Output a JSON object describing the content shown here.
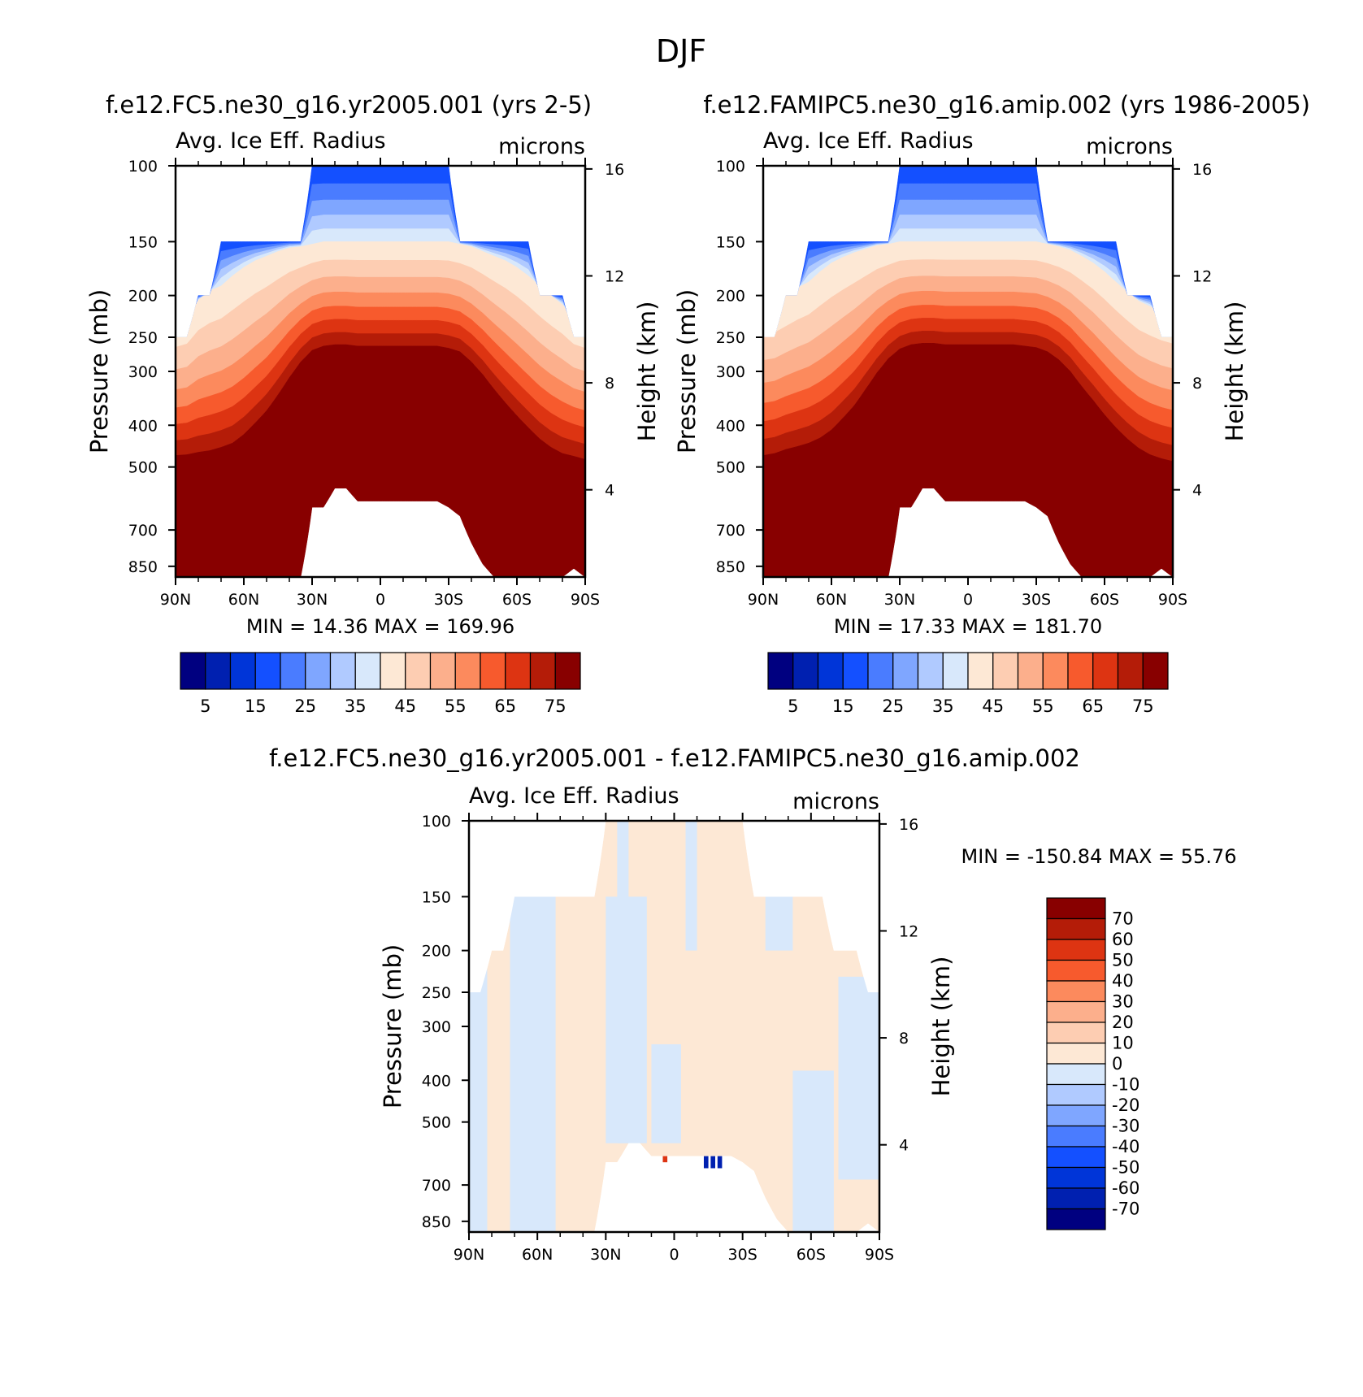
{
  "figure": {
    "title": "DJF"
  },
  "axes_common": {
    "pressure_ticks": [
      100,
      150,
      200,
      250,
      300,
      400,
      500,
      700,
      850
    ],
    "height_ticks": [
      16,
      12,
      8,
      4
    ],
    "lat_ticks": [
      "90N",
      "60N",
      "30N",
      "0",
      "30S",
      "60S",
      "90S"
    ],
    "ylabel": "Pressure (mb)",
    "y2label": "Height (km)",
    "variable": "Avg. Ice Eff. Radius",
    "units": "microns"
  },
  "palettes": {
    "abs": [
      "#000080",
      "#0020b0",
      "#0035d8",
      "#1450ff",
      "#4a7cff",
      "#7fa6ff",
      "#b0caff",
      "#d8e8fb",
      "#fde8d5",
      "#fdcdb2",
      "#fcaf8c",
      "#fc8a5d",
      "#f75a2d",
      "#dd3412",
      "#b41c08",
      "#880000"
    ],
    "diff": [
      "#000080",
      "#0020b0",
      "#0035d8",
      "#1450ff",
      "#4a7cff",
      "#7fa6ff",
      "#b0caff",
      "#d8e8fb",
      "#fde8d5",
      "#fdcdb2",
      "#fcaf8c",
      "#fc8a5d",
      "#f75a2d",
      "#dd3412",
      "#b41c08",
      "#880000"
    ]
  },
  "panels": [
    {
      "id": "top-left",
      "title": "f.e12.FC5.ne30_g16.yr2005.001 (yrs 2-5)",
      "stats": "MIN =   14.36   MAX =  169.96",
      "colorbar_labels": [
        "5",
        "15",
        "25",
        "35",
        "45",
        "55",
        "65",
        "75"
      ]
    },
    {
      "id": "top-right",
      "title": "f.e12.FAMIPC5.ne30_g16.amip.002 (yrs 1986-2005)",
      "stats": "MIN =   17.33   MAX =  181.70",
      "colorbar_labels": [
        "5",
        "15",
        "25",
        "35",
        "45",
        "55",
        "65",
        "75"
      ]
    },
    {
      "id": "bottom-diff",
      "title": "f.e12.FC5.ne30_g16.yr2005.001 - f.e12.FAMIPC5.ne30_g16.amip.002",
      "stats": "MIN = -150.84   MAX =   55.76",
      "colorbar_labels": [
        "70",
        "60",
        "50",
        "40",
        "30",
        "20",
        "10",
        "0",
        "-10",
        "-20",
        "-30",
        "-40",
        "-50",
        "-60",
        "-70"
      ]
    }
  ],
  "chart_data": [
    {
      "type": "heatmap",
      "title": "f.e12.FC5.ne30_g16.yr2005.001 (yrs 2-5)",
      "subtitle": "Avg. Ice Eff. Radius",
      "units": "microns",
      "xlabel": "",
      "ylabel": "Pressure (mb)",
      "y2label": "Height (km)",
      "x_range": [
        90,
        -90
      ],
      "y_range": [
        100,
        900
      ],
      "min": 14.36,
      "max": 169.96,
      "levels": [
        5,
        10,
        15,
        20,
        25,
        30,
        35,
        40,
        45,
        50,
        55,
        60,
        65,
        70,
        75
      ],
      "zonal_profiles": {
        "lat": [
          90,
          85,
          80,
          75,
          70,
          65,
          60,
          55,
          50,
          45,
          40,
          35,
          30,
          25,
          20,
          15,
          10,
          5,
          0,
          -5,
          -10,
          -15,
          -20,
          -25,
          -30,
          -35,
          -40,
          -45,
          -50,
          -55,
          -60,
          -65,
          -70,
          -75,
          -80,
          -85,
          -90
        ],
        "p_top_valid": [
          250,
          250,
          200,
          200,
          150,
          150,
          150,
          150,
          150,
          150,
          150,
          150,
          100,
          100,
          100,
          100,
          100,
          100,
          100,
          100,
          100,
          100,
          100,
          100,
          100,
          150,
          150,
          150,
          150,
          150,
          150,
          150,
          200,
          200,
          200,
          250,
          250
        ],
        "p_surface": [
          900,
          900,
          900,
          900,
          900,
          900,
          900,
          900,
          900,
          900,
          900,
          900,
          620,
          620,
          560,
          560,
          600,
          600,
          600,
          600,
          600,
          600,
          600,
          600,
          620,
          650,
          750,
          840,
          900,
          900,
          900,
          900,
          900,
          900,
          900,
          860,
          900
        ],
        "p_contour_45": [
          230,
          225,
          205,
          195,
          190,
          180,
          172,
          166,
          162,
          158,
          155,
          154,
          152,
          150,
          150,
          150,
          150,
          150,
          150,
          150,
          150,
          150,
          150,
          150,
          150,
          152,
          154,
          158,
          162,
          166,
          172,
          180,
          190,
          200,
          210,
          225,
          230
        ],
        "p_contour_75": [
          470,
          468,
          462,
          458,
          450,
          440,
          420,
          395,
          370,
          340,
          310,
          285,
          268,
          262,
          260,
          260,
          262,
          262,
          262,
          262,
          262,
          262,
          262,
          262,
          265,
          270,
          285,
          305,
          330,
          355,
          380,
          405,
          430,
          450,
          465,
          472,
          480
        ]
      }
    },
    {
      "type": "heatmap",
      "title": "f.e12.FAMIPC5.ne30_g16.amip.002 (yrs 1986-2005)",
      "subtitle": "Avg. Ice Eff. Radius",
      "units": "microns",
      "xlabel": "",
      "ylabel": "Pressure (mb)",
      "y2label": "Height (km)",
      "x_range": [
        90,
        -90
      ],
      "y_range": [
        100,
        900
      ],
      "min": 17.33,
      "max": 181.7,
      "levels": [
        5,
        10,
        15,
        20,
        25,
        30,
        35,
        40,
        45,
        50,
        55,
        60,
        65,
        70,
        75
      ],
      "zonal_profiles": {
        "lat": [
          90,
          85,
          80,
          75,
          70,
          65,
          60,
          55,
          50,
          45,
          40,
          35,
          30,
          25,
          20,
          15,
          10,
          5,
          0,
          -5,
          -10,
          -15,
          -20,
          -25,
          -30,
          -35,
          -40,
          -45,
          -50,
          -55,
          -60,
          -65,
          -70,
          -75,
          -80,
          -85,
          -90
        ],
        "p_top_valid": [
          250,
          250,
          200,
          200,
          150,
          150,
          150,
          150,
          150,
          150,
          150,
          150,
          100,
          100,
          100,
          100,
          100,
          100,
          100,
          100,
          100,
          100,
          100,
          100,
          100,
          150,
          150,
          150,
          150,
          150,
          150,
          150,
          200,
          200,
          200,
          250,
          250
        ],
        "p_surface": [
          900,
          900,
          900,
          900,
          900,
          900,
          900,
          900,
          900,
          900,
          900,
          900,
          620,
          620,
          560,
          560,
          600,
          600,
          600,
          600,
          600,
          600,
          600,
          600,
          620,
          650,
          750,
          840,
          900,
          900,
          900,
          900,
          900,
          900,
          900,
          860,
          900
        ],
        "p_contour_45": [
          210,
          208,
          200,
          192,
          186,
          176,
          168,
          163,
          159,
          156,
          153,
          152,
          150,
          150,
          150,
          150,
          150,
          150,
          150,
          150,
          150,
          150,
          150,
          150,
          150,
          152,
          154,
          157,
          162,
          168,
          176,
          186,
          196,
          206,
          212,
          218,
          222
        ],
        "p_contour_75": [
          470,
          465,
          455,
          448,
          440,
          428,
          410,
          385,
          360,
          330,
          302,
          280,
          266,
          260,
          258,
          258,
          260,
          260,
          260,
          260,
          260,
          260,
          260,
          262,
          264,
          270,
          282,
          300,
          325,
          350,
          378,
          405,
          430,
          452,
          468,
          478,
          485
        ]
      }
    },
    {
      "type": "heatmap",
      "title": "f.e12.FC5.ne30_g16.yr2005.001 - f.e12.FAMIPC5.ne30_g16.amip.002",
      "subtitle": "Avg. Ice Eff. Radius",
      "units": "microns",
      "xlabel": "",
      "ylabel": "Pressure (mb)",
      "y2label": "Height (km)",
      "x_range": [
        90,
        -90
      ],
      "y_range": [
        100,
        900
      ],
      "min": -150.84,
      "max": 55.76,
      "levels": [
        -70,
        -60,
        -50,
        -40,
        -30,
        -20,
        -10,
        0,
        10,
        20,
        30,
        40,
        50,
        60,
        70
      ],
      "description_regions": {
        "mostly_0_to_10": "tropics and mid-latitudes",
        "mostly_-10_to_0": "bands near 75N-60N, 20N, 60S-90S",
        "strong_negative": "near 600-650 mb around 20S-30S"
      }
    }
  ]
}
